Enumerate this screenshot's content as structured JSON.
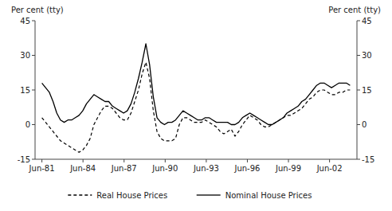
{
  "chart_data": {
    "type": "line",
    "y_label": "Per cent (tty)",
    "y2_label": "Per cent (tty)",
    "x": [
      1981.5,
      1981.7711,
      1982.0422,
      1982.3133,
      1982.5843,
      1982.8554,
      1983.1265,
      1983.3976,
      1983.6687,
      1983.9398,
      1984.2108,
      1984.4819,
      1984.753,
      1985.0241,
      1985.2952,
      1985.5663,
      1985.8373,
      1986.1084,
      1986.3795,
      1986.6506,
      1986.9217,
      1987.1928,
      1987.4639,
      1987.7349,
      1988.006,
      1988.2771,
      1988.5482,
      1988.8193,
      1989.0904,
      1989.3614,
      1989.6325,
      1989.9036,
      1990.1747,
      1990.4458,
      1990.7169,
      1990.988,
      1991.259,
      1991.5301,
      1991.8012,
      1992.0723,
      1992.3434,
      1992.6145,
      1992.8855,
      1993.1566,
      1993.4277,
      1993.6988,
      1993.9699,
      1994.241,
      1994.512,
      1994.7831,
      1995.0542,
      1995.3253,
      1995.5964,
      1995.8675,
      1996.1386,
      1996.4096,
      1996.6807,
      1996.9518,
      1997.2229,
      1997.494,
      1997.7651,
      1998.0361,
      1998.3072,
      1998.5783,
      1998.8494,
      1999.1205,
      1999.3916,
      1999.6627,
      1999.9337,
      2000.2048,
      2000.4759,
      2000.747,
      2001.0181,
      2001.2892,
      2001.5602,
      2001.8313,
      2002.1024,
      2002.3735,
      2002.6446,
      2002.9157,
      2003.1867,
      2003.4578,
      2003.7289,
      2004.0
    ],
    "xlim": [
      1981.0,
      2004.5
    ],
    "xticks": [
      {
        "value": 1981.5,
        "label": "Jun-81"
      },
      {
        "value": 1984.5,
        "label": "Jun-84"
      },
      {
        "value": 1987.5,
        "label": "Jun-87"
      },
      {
        "value": 1990.5,
        "label": "Jun-90"
      },
      {
        "value": 1993.5,
        "label": "Jun-93"
      },
      {
        "value": 1996.5,
        "label": "Jun-96"
      },
      {
        "value": 1999.5,
        "label": "Jun-99"
      },
      {
        "value": 2002.5,
        "label": "Jun-02"
      }
    ],
    "ylim": [
      -15,
      45
    ],
    "yticks": [
      -15,
      0,
      15,
      30,
      45
    ],
    "y2lim": [
      -15,
      45
    ],
    "y2ticks": [
      -15,
      0,
      15,
      30,
      45
    ],
    "grid": false,
    "legend": "bottom",
    "series": [
      {
        "name": "Real House Prices",
        "color": "#000000",
        "line_style": "dashed",
        "values": [
          3,
          1,
          -1,
          -3,
          -5,
          -7,
          -8,
          -9,
          -10,
          -11,
          -12,
          -11,
          -9,
          -6,
          0,
          3,
          6,
          8,
          8,
          7,
          5,
          3,
          2,
          2,
          5,
          10,
          15,
          22,
          27,
          20,
          6,
          -3,
          -6,
          -7,
          -7,
          -7,
          -6,
          0,
          3,
          3,
          2,
          1,
          1,
          1,
          2,
          1,
          0,
          -1,
          -3,
          -4,
          -3,
          -2,
          -5,
          -3,
          0,
          2,
          4,
          3,
          2,
          0,
          -1,
          -1,
          0,
          1,
          2,
          3,
          4,
          4,
          5,
          6,
          7,
          9,
          11,
          12,
          14,
          15,
          15,
          14,
          13,
          13,
          14,
          14,
          15,
          15
        ]
      },
      {
        "name": "Nominal House Prices",
        "color": "#000000",
        "line_style": "solid",
        "values": [
          18,
          16,
          14,
          10,
          5,
          2,
          1,
          2,
          2,
          3,
          4,
          6,
          9,
          11,
          13,
          12,
          11,
          10,
          10,
          8,
          7,
          6,
          5,
          6,
          9,
          14,
          20,
          27,
          35,
          26,
          12,
          3,
          1,
          0,
          1,
          1,
          2,
          4,
          6,
          5,
          4,
          3,
          2,
          2,
          3,
          3,
          2,
          1,
          1,
          1,
          1,
          0,
          0,
          1,
          3,
          4,
          5,
          4,
          3,
          2,
          1,
          0,
          0,
          1,
          2,
          3,
          5,
          6,
          7,
          8,
          10,
          11,
          13,
          15,
          17,
          18,
          18,
          17,
          16,
          17,
          18,
          18,
          18,
          17
        ]
      }
    ]
  }
}
